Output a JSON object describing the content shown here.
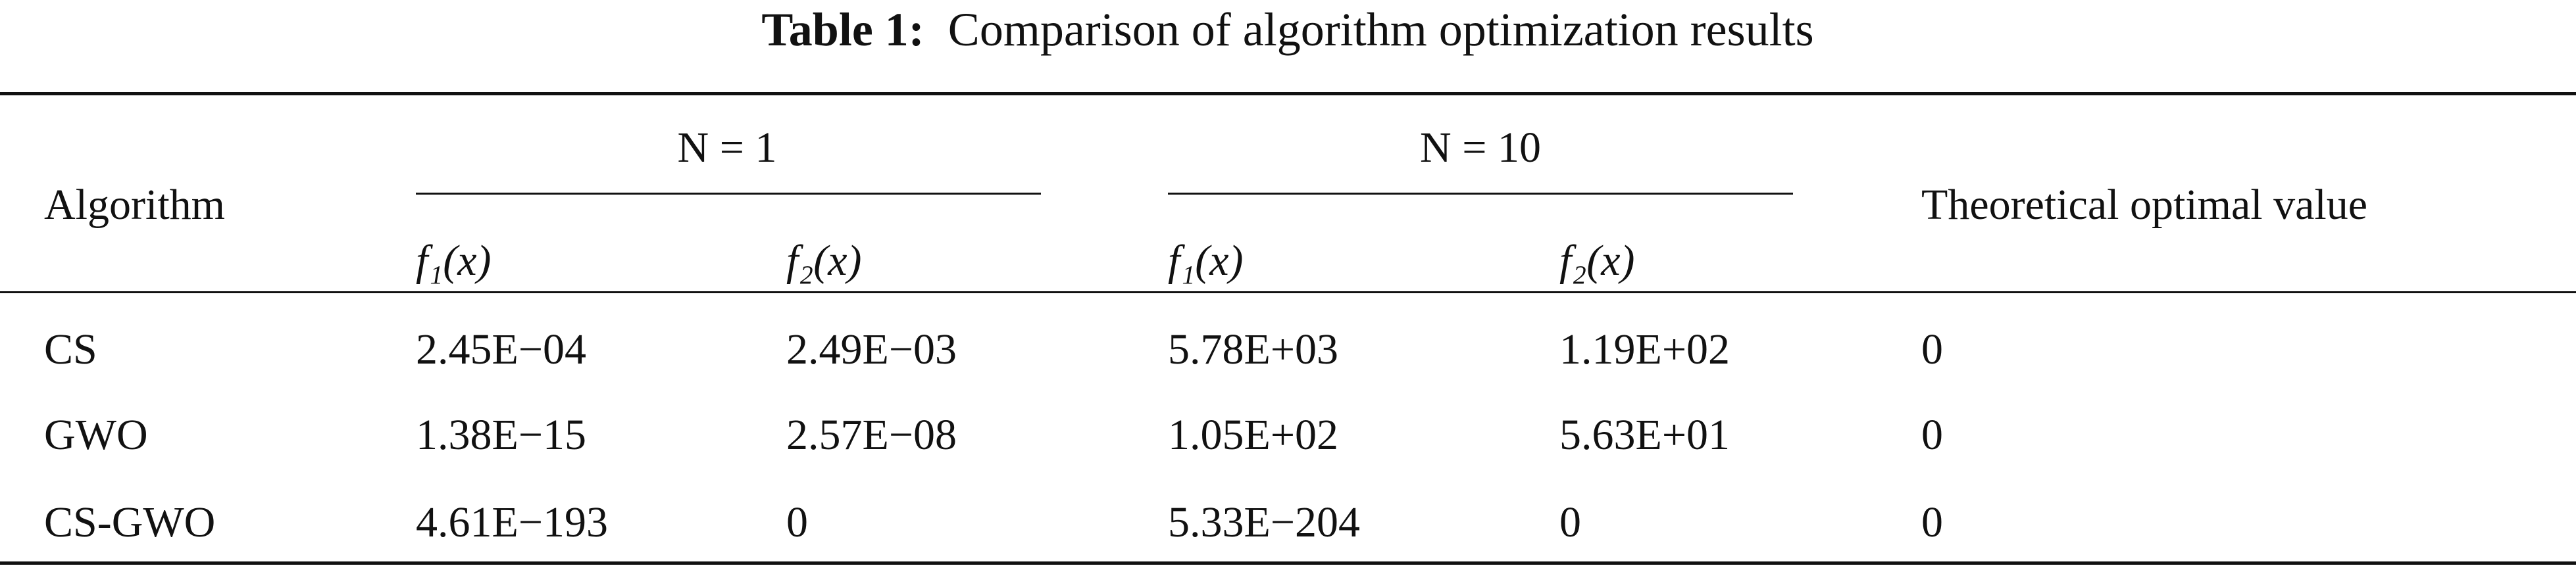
{
  "title": {
    "label": "Table 1:",
    "text": "Comparison of algorithm optimization results"
  },
  "table": {
    "header": {
      "algorithm": "Algorithm",
      "groups": [
        "N = 1",
        "N = 10"
      ],
      "optimal": "Theoretical optimal value",
      "functions": [
        "f₁(x)",
        "f₂(x)",
        "f₁(x)",
        "f₂(x)"
      ]
    },
    "rows": [
      [
        "CS",
        "2.45E−04",
        "2.49E−03",
        "5.78E+03",
        "1.19E+02",
        "0"
      ],
      [
        "GWO",
        "1.38E−15",
        "2.57E−08",
        "1.05E+02",
        "5.63E+01",
        "0"
      ],
      [
        "CS-GWO",
        "4.61E−193",
        "0",
        "5.33E−204",
        "0",
        "0"
      ]
    ]
  }
}
